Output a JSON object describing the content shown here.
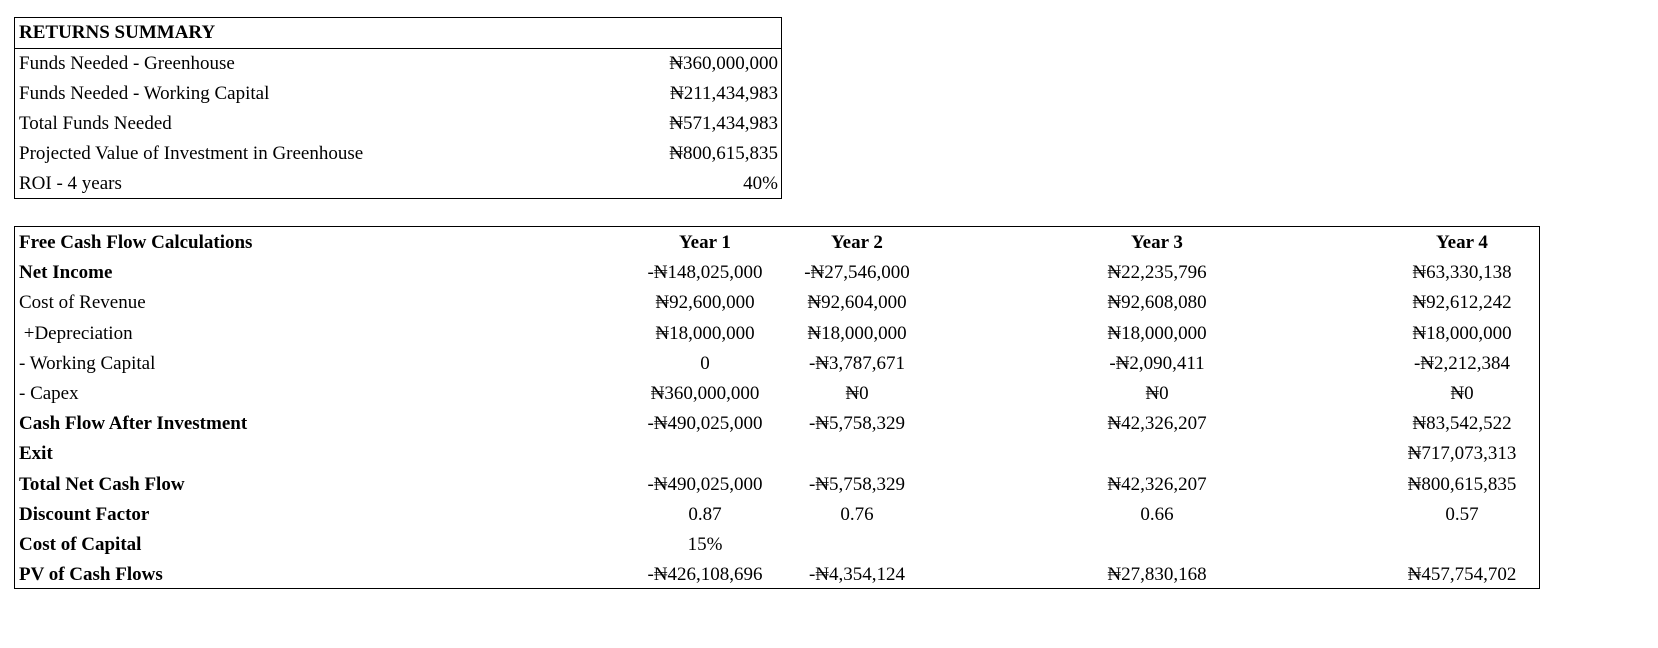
{
  "summary": {
    "title": "RETURNS SUMMARY",
    "rows": [
      {
        "label": "Funds Needed - Greenhouse",
        "value": "₦360,000,000"
      },
      {
        "label": "Funds Needed - Working Capital",
        "value": "₦211,434,983"
      },
      {
        "label": "Total Funds Needed",
        "value": "₦571,434,983"
      },
      {
        "label": "Projected Value of Investment in Greenhouse",
        "value": "₦800,615,835"
      },
      {
        "label": "ROI - 4 years",
        "value": "40%"
      }
    ]
  },
  "fcf": {
    "header": {
      "label": "Free Cash Flow Calculations",
      "years": [
        "Year 1",
        "Year 2",
        "Year 3",
        "Year 4"
      ]
    },
    "rows": [
      {
        "label": "Net Income",
        "values": [
          "-₦148,025,000",
          "-₦27,546,000",
          "₦22,235,796",
          "₦63,330,138"
        ]
      },
      {
        "label": "Cost of Revenue",
        "values": [
          "₦92,600,000",
          "₦92,604,000",
          "₦92,608,080",
          "₦92,612,242"
        ]
      },
      {
        "label": " +Depreciation",
        "values": [
          "₦18,000,000",
          "₦18,000,000",
          "₦18,000,000",
          "₦18,000,000"
        ]
      },
      {
        "label": "- Working Capital",
        "values": [
          "0",
          "-₦3,787,671",
          "-₦2,090,411",
          "-₦2,212,384"
        ]
      },
      {
        "label": "- Capex",
        "values": [
          "₦360,000,000",
          "₦0",
          "₦0",
          "₦0"
        ]
      },
      {
        "label": "Cash Flow After Investment",
        "values": [
          "-₦490,025,000",
          "-₦5,758,329",
          "₦42,326,207",
          "₦83,542,522"
        ]
      },
      {
        "label": "Exit",
        "values": [
          "",
          "",
          "",
          "₦717,073,313"
        ]
      },
      {
        "label": "Total Net Cash Flow",
        "values": [
          "-₦490,025,000",
          "-₦5,758,329",
          "₦42,326,207",
          "₦800,615,835"
        ]
      },
      {
        "label": "Discount Factor",
        "values": [
          "0.87",
          "0.76",
          "0.66",
          "0.57"
        ]
      },
      {
        "label": "Cost of Capital",
        "values": [
          "15%",
          "",
          "",
          ""
        ]
      },
      {
        "label": "PV of Cash Flows",
        "values": [
          "-₦426,108,696",
          "-₦4,354,124",
          "₦27,830,168",
          "₦457,754,702"
        ]
      }
    ]
  }
}
